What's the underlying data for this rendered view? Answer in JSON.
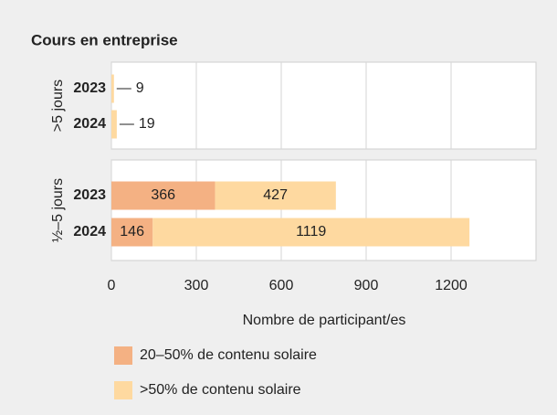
{
  "chart_data": {
    "type": "bar",
    "stacked": true,
    "orientation": "horizontal",
    "title": "Cours en entreprise",
    "groups": [
      {
        "name": ">5 jours",
        "categories": [
          "2023",
          "2024"
        ]
      },
      {
        "name": "½–5 jours",
        "categories": [
          "2023",
          "2024"
        ]
      }
    ],
    "series": [
      {
        "name": "20–50% de contenu solaire",
        "color": "#f4b183",
        "values": [
          [
            null,
            null
          ],
          [
            366,
            146
          ]
        ]
      },
      {
        "name": ">50% de contenu solaire",
        "color": "#fed9a0",
        "values": [
          [
            9,
            19
          ],
          [
            427,
            1119
          ]
        ]
      }
    ],
    "xlabel": "Nombre de participant/es",
    "xlim": [
      0,
      1500
    ],
    "xticks": [
      0,
      300,
      600,
      900,
      1200
    ],
    "grid": true
  }
}
